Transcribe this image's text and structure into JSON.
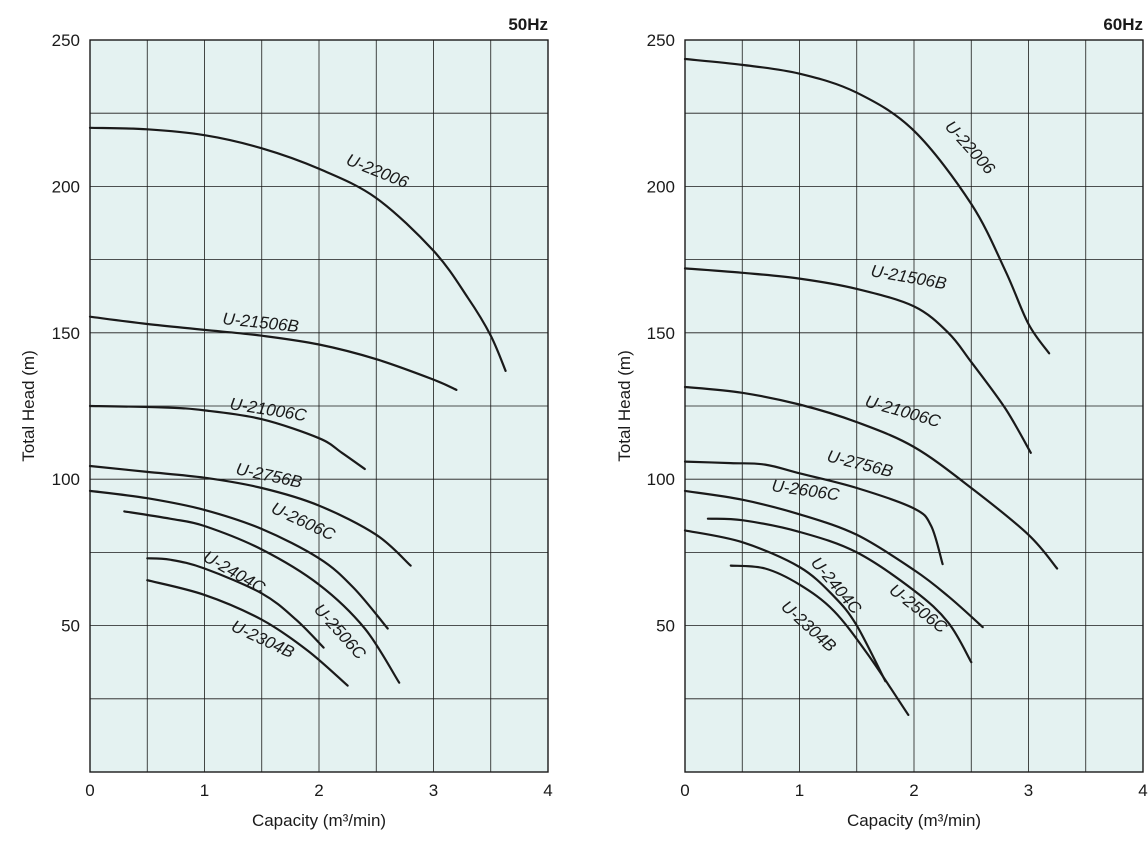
{
  "colors": {
    "plot_background": "#e4f2f1",
    "grid": "#1a1a1a",
    "curve": "#1a1a1a"
  },
  "chart_data": [
    {
      "type": "line",
      "title": "50Hz",
      "xlabel": "Capacity (m³/min)",
      "ylabel": "Total Head (m)",
      "xlim": [
        0,
        4
      ],
      "ylim": [
        0,
        250
      ],
      "x_ticks": [
        "0",
        "1",
        "2",
        "3",
        "4"
      ],
      "y_ticks": [
        "50",
        "100",
        "150",
        "200",
        "250"
      ],
      "grid": true,
      "series": [
        {
          "name": "U-22006",
          "points": [
            [
              0,
              220
            ],
            [
              0.5,
              219.5
            ],
            [
              1,
              217.5
            ],
            [
              1.5,
              213
            ],
            [
              2,
              206
            ],
            [
              2.5,
              196
            ],
            [
              3,
              178
            ],
            [
              3.3,
              162
            ],
            [
              3.5,
              149
            ],
            [
              3.63,
              137
            ]
          ]
        },
        {
          "name": "U-21506B",
          "points": [
            [
              0,
              155.5
            ],
            [
              0.5,
              153
            ],
            [
              1,
              151
            ],
            [
              1.5,
              149
            ],
            [
              2,
              146
            ],
            [
              2.5,
              141
            ],
            [
              3,
              134
            ],
            [
              3.2,
              130.5
            ]
          ]
        },
        {
          "name": "U-21006C",
          "points": [
            [
              0,
              125
            ],
            [
              0.65,
              124.5
            ],
            [
              1,
              123.5
            ],
            [
              1.5,
              120.5
            ],
            [
              2,
              114
            ],
            [
              2.2,
              109
            ],
            [
              2.4,
              103.5
            ]
          ]
        },
        {
          "name": "U-2756B",
          "points": [
            [
              0,
              104.5
            ],
            [
              0.5,
              102.5
            ],
            [
              1,
              100.5
            ],
            [
              1.5,
              97
            ],
            [
              2,
              91
            ],
            [
              2.5,
              81
            ],
            [
              2.8,
              70.5
            ]
          ]
        },
        {
          "name": "U-2606C",
          "points": [
            [
              0,
              96
            ],
            [
              0.5,
              93.5
            ],
            [
              1,
              89.5
            ],
            [
              1.5,
              83
            ],
            [
              2,
              73
            ],
            [
              2.3,
              63
            ],
            [
              2.6,
              49
            ]
          ]
        },
        {
          "name": "U-2506C",
          "points": [
            [
              0.3,
              89
            ],
            [
              0.7,
              86.5
            ],
            [
              1,
              84
            ],
            [
              1.5,
              76
            ],
            [
              2,
              64
            ],
            [
              2.4,
              49
            ],
            [
              2.7,
              30.5
            ]
          ]
        },
        {
          "name": "U-2404C",
          "points": [
            [
              0.5,
              73
            ],
            [
              0.7,
              72.5
            ],
            [
              1,
              69.5
            ],
            [
              1.5,
              61
            ],
            [
              1.8,
              52
            ],
            [
              2.04,
              42.5
            ]
          ]
        },
        {
          "name": "U-2304B",
          "points": [
            [
              0.5,
              65.5
            ],
            [
              1,
              60.5
            ],
            [
              1.5,
              52
            ],
            [
              1.9,
              41.5
            ],
            [
              2.25,
              29.5
            ]
          ]
        }
      ],
      "labels": {
        "U-22006": "U-22006",
        "U-21506B": "U-21506B",
        "U-21006C": "U-21006C",
        "U-2756B": "U-2756B",
        "U-2606C": "U-2606C",
        "U-2506C": "U-2506C",
        "U-2404C": "U-2404C",
        "U-2304B": "U-2304B"
      }
    },
    {
      "type": "line",
      "title": "60Hz",
      "xlabel": "Capacity (m³/min)",
      "ylabel": "Total Head (m)",
      "xlim": [
        0,
        4
      ],
      "ylim": [
        0,
        250
      ],
      "x_ticks": [
        "0",
        "1",
        "2",
        "3",
        "4"
      ],
      "y_ticks": [
        "50",
        "100",
        "150",
        "200",
        "250"
      ],
      "grid": true,
      "series": [
        {
          "name": "U-22006",
          "points": [
            [
              0,
              243.5
            ],
            [
              0.5,
              241.5
            ],
            [
              1,
              238.5
            ],
            [
              1.5,
              232
            ],
            [
              2,
              219
            ],
            [
              2.5,
              194
            ],
            [
              2.8,
              171
            ],
            [
              3,
              153
            ],
            [
              3.18,
              143
            ]
          ]
        },
        {
          "name": "U-21506B",
          "points": [
            [
              0,
              172
            ],
            [
              0.5,
              170.5
            ],
            [
              1,
              168.5
            ],
            [
              1.5,
              165
            ],
            [
              2,
              159
            ],
            [
              2.3,
              150
            ],
            [
              2.5,
              140
            ],
            [
              2.8,
              124
            ],
            [
              3.02,
              109
            ]
          ]
        },
        {
          "name": "U-21006C",
          "points": [
            [
              0,
              131.5
            ],
            [
              0.5,
              129.5
            ],
            [
              1,
              125.5
            ],
            [
              1.5,
              119.5
            ],
            [
              2,
              111
            ],
            [
              2.5,
              97
            ],
            [
              3,
              81
            ],
            [
              3.25,
              69.5
            ]
          ]
        },
        {
          "name": "U-2756B",
          "points": [
            [
              0,
              106
            ],
            [
              0.4,
              105.5
            ],
            [
              0.7,
              105
            ],
            [
              1,
              102
            ],
            [
              1.5,
              97
            ],
            [
              2,
              90
            ],
            [
              2.15,
              84
            ],
            [
              2.25,
              71
            ]
          ]
        },
        {
          "name": "U-2606C",
          "points": [
            [
              0,
              96
            ],
            [
              0.5,
              93
            ],
            [
              1,
              88
            ],
            [
              1.5,
              81
            ],
            [
              2,
              69
            ],
            [
              2.3,
              60
            ],
            [
              2.6,
              49.5
            ]
          ]
        },
        {
          "name": "U-2506C",
          "points": [
            [
              0.2,
              86.5
            ],
            [
              0.5,
              86
            ],
            [
              1,
              82
            ],
            [
              1.5,
              75
            ],
            [
              2,
              62
            ],
            [
              2.3,
              51
            ],
            [
              2.5,
              37.5
            ]
          ]
        },
        {
          "name": "U-2404C",
          "points": [
            [
              0,
              82.5
            ],
            [
              0.5,
              78.5
            ],
            [
              1,
              70
            ],
            [
              1.3,
              60
            ],
            [
              1.5,
              50
            ],
            [
              1.75,
              31
            ]
          ]
        },
        {
          "name": "U-2304B",
          "points": [
            [
              0.4,
              70.5
            ],
            [
              0.7,
              69.5
            ],
            [
              1,
              64
            ],
            [
              1.3,
              55
            ],
            [
              1.6,
              40
            ],
            [
              1.95,
              19.5
            ]
          ]
        }
      ],
      "labels": {
        "U-22006": "U-22006",
        "U-21506B": "U-21506B",
        "U-21006C": "U-21006C",
        "U-2756B": "U-2756B",
        "U-2606C": "U-2606C",
        "U-2506C": "U-2506C",
        "U-2404C": "U-2404C",
        "U-2304B": "U-2304B"
      }
    }
  ]
}
